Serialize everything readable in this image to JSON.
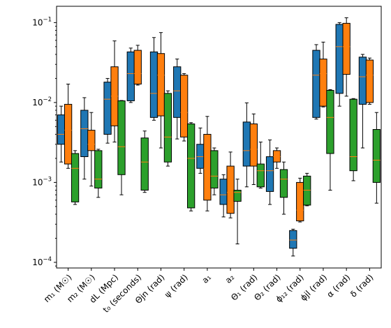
{
  "chart_data": {
    "type": "box",
    "y_scale": "log",
    "ylim": [
      8.5e-05,
      0.16
    ],
    "y_ticks": [
      {
        "value": 0.0001,
        "base": "10",
        "exp": "−4"
      },
      {
        "value": 0.001,
        "base": "10",
        "exp": "−3"
      },
      {
        "value": 0.01,
        "base": "10",
        "exp": "−2"
      },
      {
        "value": 0.1,
        "base": "10",
        "exp": "−1"
      }
    ],
    "categories": [
      {
        "label": "m₁ (M☉)"
      },
      {
        "label": "m₂ (M☉)"
      },
      {
        "label": "dL (Mpc)"
      },
      {
        "label": "t₀ (seconds)"
      },
      {
        "label": "Θjn (rad)"
      },
      {
        "label": "ψ (rad)"
      },
      {
        "label": "a₁"
      },
      {
        "label": "a₂"
      },
      {
        "label": "Θ₁ (rad)"
      },
      {
        "label": "Θ₂ (rad)"
      },
      {
        "label": "ϕ₁₂ (rad)"
      },
      {
        "label": "ϕjl (rad)"
      },
      {
        "label": "α (rad)"
      },
      {
        "label": "δ (rad)"
      }
    ],
    "series_colors": [
      "#1f77b4",
      "#ff7f0e",
      "#2ca02c"
    ],
    "median_color": "#ff7f0e",
    "boxes": [
      [
        {
          "whislo": 0.0018,
          "q1": 0.003,
          "med": 0.004,
          "q3": 0.007,
          "whishi": 0.009
        },
        {
          "whislo": 0.0015,
          "q1": 0.0017,
          "med": 0.0045,
          "q3": 0.0095,
          "whishi": 0.017
        },
        {
          "whislo": 0.00053,
          "q1": 0.00057,
          "med": 0.0015,
          "q3": 0.0023,
          "whishi": 0.0025
        }
      ],
      [
        {
          "whislo": 0.0011,
          "q1": 0.0021,
          "med": 0.0047,
          "q3": 0.008,
          "whishi": 0.0115
        },
        {
          "whislo": 0.0009,
          "q1": 0.0025,
          "med": 0.003,
          "q3": 0.0045,
          "whishi": 0.0075
        },
        {
          "whislo": 0.00065,
          "q1": 0.00085,
          "med": 0.0011,
          "q3": 0.0025,
          "whishi": 0.0026
        }
      ],
      [
        {
          "whislo": 0.0031,
          "q1": 0.004,
          "med": 0.011,
          "q3": 0.018,
          "whishi": 0.02
        },
        {
          "whislo": 0.0032,
          "q1": 0.0051,
          "med": 0.012,
          "q3": 0.028,
          "whishi": 0.059
        },
        {
          "whislo": 0.0007,
          "q1": 0.00125,
          "med": 0.0028,
          "q3": 0.0105,
          "whishi": 0.0106
        }
      ],
      [
        {
          "whislo": 0.01,
          "q1": 0.0105,
          "med": 0.023,
          "q3": 0.043,
          "whishi": 0.048
        },
        {
          "whislo": 0.0165,
          "q1": 0.017,
          "med": 0.023,
          "q3": 0.045,
          "whishi": 0.052
        },
        {
          "whislo": 0.00075,
          "q1": 0.0008,
          "med": 0.0018,
          "q3": 0.0036,
          "whishi": 0.0044
        }
      ],
      [
        {
          "whislo": 0.006,
          "q1": 0.0065,
          "med": 0.013,
          "q3": 0.043,
          "whishi": 0.065
        },
        {
          "whislo": 0.0027,
          "q1": 0.0068,
          "med": 0.022,
          "q3": 0.041,
          "whishi": 0.075
        },
        {
          "whislo": 0.0016,
          "q1": 0.0018,
          "med": 0.0037,
          "q3": 0.013,
          "whishi": 0.014
        }
      ],
      [
        {
          "whislo": 0.0035,
          "q1": 0.0065,
          "med": 0.014,
          "q3": 0.028,
          "whishi": 0.035
        },
        {
          "whislo": 0.0033,
          "q1": 0.0037,
          "med": 0.0075,
          "q3": 0.022,
          "whishi": 0.023
        },
        {
          "whislo": 0.00044,
          "q1": 0.00048,
          "med": 0.002,
          "q3": 0.0054,
          "whishi": 0.0056
        }
      ],
      [
        {
          "whislo": 0.0013,
          "q1": 0.0015,
          "med": 0.0021,
          "q3": 0.003,
          "whishi": 0.0048
        },
        {
          "whislo": 0.00044,
          "q1": 0.0006,
          "med": 0.0015,
          "q3": 0.004,
          "whishi": 0.0067
        },
        {
          "whislo": 0.0007,
          "q1": 0.00085,
          "med": 0.0012,
          "q3": 0.0025,
          "whishi": 0.0027
        }
      ],
      [
        {
          "whislo": 0.00037,
          "q1": 0.00053,
          "med": 0.0007,
          "q3": 0.0011,
          "whishi": 0.00125
        },
        {
          "whislo": 0.00036,
          "q1": 0.00041,
          "med": 0.00075,
          "q3": 0.0016,
          "whishi": 0.0024
        },
        {
          "whislo": 0.00017,
          "q1": 0.00058,
          "med": 0.00075,
          "q3": 0.0008,
          "whishi": 0.0011
        }
      ],
      [
        {
          "whislo": 0.00088,
          "q1": 0.0016,
          "med": 0.0025,
          "q3": 0.0057,
          "whishi": 0.0099
        },
        {
          "whislo": 0.00094,
          "q1": 0.0016,
          "med": 0.0026,
          "q3": 0.0054,
          "whishi": 0.0072
        },
        {
          "whislo": 0.00085,
          "q1": 0.00088,
          "med": 0.0014,
          "q3": 0.0017,
          "whishi": 0.0032
        }
      ],
      [
        {
          "whislo": 0.00053,
          "q1": 0.00077,
          "med": 0.0014,
          "q3": 0.0021,
          "whishi": 0.0034
        },
        {
          "whislo": 0.0015,
          "q1": 0.0018,
          "med": 0.0021,
          "q3": 0.0025,
          "whishi": 0.0027
        },
        {
          "whislo": 0.0004,
          "q1": 0.00065,
          "med": 0.0011,
          "q3": 0.00145,
          "whishi": 0.0018
        }
      ],
      [
        {
          "whislo": 0.00012,
          "q1": 0.00015,
          "med": 0.00019,
          "q3": 0.00025,
          "whishi": 0.00026
        },
        {
          "whislo": 0.00032,
          "q1": 0.00033,
          "med": 0.00045,
          "q3": 0.001,
          "whishi": 0.00113
        },
        {
          "whislo": 0.00051,
          "q1": 0.00052,
          "med": 0.0008,
          "q3": 0.0012,
          "whishi": 0.0013
        }
      ],
      [
        {
          "whislo": 0.0062,
          "q1": 0.0065,
          "med": 0.022,
          "q3": 0.045,
          "whishi": 0.053
        },
        {
          "whislo": 0.0088,
          "q1": 0.009,
          "med": 0.023,
          "q3": 0.035,
          "whishi": 0.057
        },
        {
          "whislo": 0.0008,
          "q1": 0.0023,
          "med": 0.0065,
          "q3": 0.0142,
          "whishi": 0.0145
        }
      ],
      [
        {
          "whislo": 0.009,
          "q1": 0.013,
          "med": 0.05,
          "q3": 0.095,
          "whishi": 0.1
        },
        {
          "whislo": 0.012,
          "q1": 0.0225,
          "med": 0.05,
          "q3": 0.098,
          "whishi": 0.115
        },
        {
          "whislo": 0.00105,
          "q1": 0.0014,
          "med": 0.0021,
          "q3": 0.011,
          "whishi": 0.0112
        }
      ],
      [
        {
          "whislo": 0.0027,
          "q1": 0.0095,
          "med": 0.021,
          "q3": 0.037,
          "whishi": 0.04
        },
        {
          "whislo": 0.0095,
          "q1": 0.01,
          "med": 0.022,
          "q3": 0.034,
          "whishi": 0.036
        },
        {
          "whislo": 0.00055,
          "q1": 0.001,
          "med": 0.0019,
          "q3": 0.0046,
          "whishi": 0.0075
        }
      ]
    ]
  }
}
